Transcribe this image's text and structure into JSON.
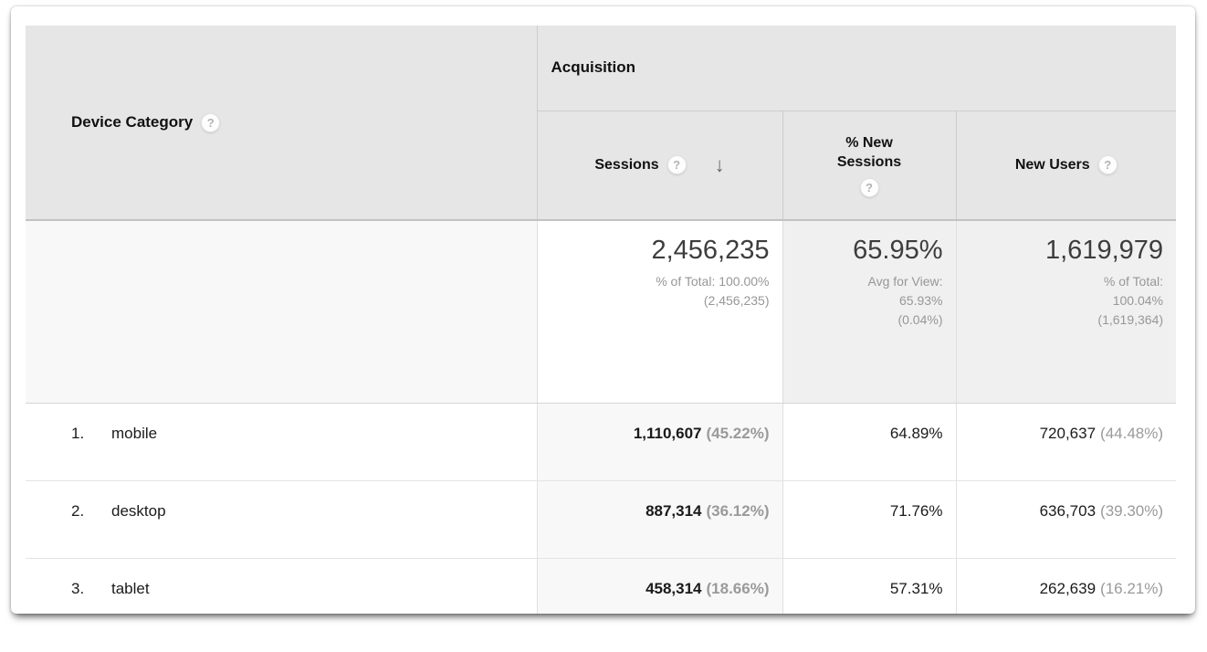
{
  "icons": {
    "help": "?",
    "sort_desc": "↓"
  },
  "colors": {
    "header_bg": "#e6e6e6",
    "sorted_column_bg": "#f8f8f8",
    "summary_metric_bg": "#f0f0f0",
    "secondary_text": "#979797",
    "primary_text": "#1a1a1a"
  },
  "table": {
    "dimension_header": {
      "label": "Device Category"
    },
    "group_header": {
      "label": "Acquisition"
    },
    "columns": [
      {
        "label": "Sessions",
        "sorted": "descending"
      },
      {
        "label": "% New Sessions"
      },
      {
        "label": "New Users"
      }
    ],
    "summary": {
      "sessions": {
        "value": "2,456,235",
        "subtext": "% of Total: 100.00%\n(2,456,235)"
      },
      "new_sessions": {
        "value": "65.95%",
        "subtext": "Avg for View:\n65.93%\n(0.04%)"
      },
      "new_users": {
        "value": "1,619,979",
        "subtext": "% of Total:\n100.04%\n(1,619,364)"
      }
    },
    "rows": [
      {
        "index": "1.",
        "label": "mobile",
        "sessions": "1,110,607",
        "sessions_pct": "(45.22%)",
        "new_sessions": "64.89%",
        "new_users": "720,637",
        "new_users_pct": "(44.48%)"
      },
      {
        "index": "2.",
        "label": "desktop",
        "sessions": "887,314",
        "sessions_pct": "(36.12%)",
        "new_sessions": "71.76%",
        "new_users": "636,703",
        "new_users_pct": "(39.30%)"
      },
      {
        "index": "3.",
        "label": "tablet",
        "sessions": "458,314",
        "sessions_pct": "(18.66%)",
        "new_sessions": "57.31%",
        "new_users": "262,639",
        "new_users_pct": "(16.21%)"
      }
    ]
  }
}
